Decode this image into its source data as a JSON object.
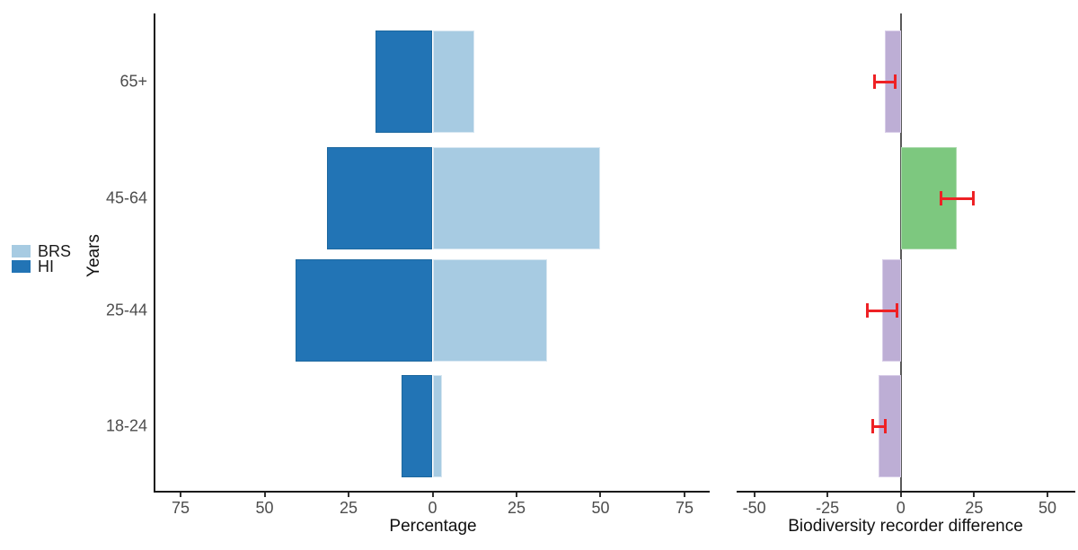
{
  "figure": {
    "background": "#ffffff",
    "y_axis_title": "Years",
    "legend": {
      "items": [
        {
          "label": "BRS",
          "color": "#a7cbe2"
        },
        {
          "label": "HI",
          "color": "#2274b5"
        }
      ]
    }
  },
  "colors": {
    "axis_line": "#1a1a1a",
    "tick_label": "#4d4d4d",
    "axis_title": "#111111",
    "zero_line": "#595959",
    "error_bar": "#ee2125"
  },
  "chart_data": [
    {
      "type": "bar",
      "orientation": "horizontal",
      "variant": "diverging-pyramid",
      "title": "",
      "xlabel": "Percentage",
      "ylabel": "Years",
      "categories": [
        "65+",
        "45-64",
        "25-44",
        "18-24"
      ],
      "series": [
        {
          "name": "BRS",
          "direction": "right",
          "color": "#a7cbe2",
          "border": "#d6e6f1",
          "values": [
            12.5,
            50.0,
            34.0,
            2.7
          ]
        },
        {
          "name": "HI",
          "direction": "left",
          "color": "#2274b5",
          "border": "#1d689f",
          "values": [
            17.0,
            31.5,
            40.7,
            9.3
          ]
        }
      ],
      "xlim": [
        -82.5,
        82.5
      ],
      "xticks": [
        -75,
        -50,
        -25,
        0,
        25,
        50,
        75
      ],
      "xtick_labels": [
        "75",
        "50",
        "25",
        "0",
        "25",
        "50",
        "75"
      ],
      "grid": false,
      "legend_position": "left-middle",
      "y_axis_line": true
    },
    {
      "type": "bar",
      "orientation": "horizontal",
      "title": "",
      "xlabel": "Biodiversity recorder difference",
      "ylabel": "",
      "categories": [
        "65+",
        "45-64",
        "25-44",
        "18-24"
      ],
      "values": [
        -5.5,
        19.0,
        -6.4,
        -7.5
      ],
      "bar_colors": [
        "#bdaed5",
        "#7dc87f",
        "#bdaed5",
        "#bdaed5"
      ],
      "bar_borders": [
        "#d8cde8",
        "#a9d9ab",
        "#d8cde8",
        "#d8cde8"
      ],
      "error_bars": {
        "color": "#ee2125",
        "low": [
          -9.0,
          13.6,
          -11.5,
          -9.6
        ],
        "high": [
          -1.8,
          24.7,
          -1.4,
          -5.4
        ]
      },
      "xlim": [
        -56,
        59.5
      ],
      "xticks": [
        -50,
        -25,
        0,
        25,
        50
      ],
      "xtick_labels": [
        "-50",
        "-25",
        "0",
        "25",
        "50"
      ],
      "grid": false,
      "zero_line": true
    }
  ]
}
